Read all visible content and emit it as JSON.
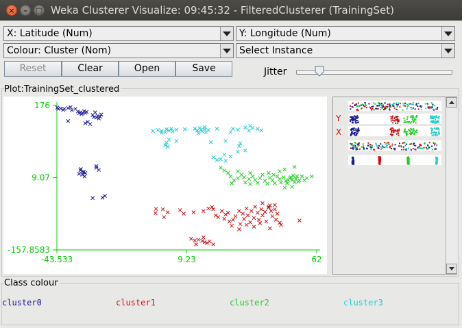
{
  "window": {
    "title": "Weka Clusterer Visualize: 09:45:32 - FilteredClusterer (TrainingSet)",
    "close_glyph": "×",
    "minimize_glyph": "–",
    "maximize_glyph": "□"
  },
  "controls": {
    "x_axis": "X: Latitude (Num)",
    "y_axis": "Y: Longitude (Num)",
    "colour": "Colour: Cluster (Nom)",
    "instance": "Select Instance",
    "buttons": {
      "reset": "Reset",
      "clear": "Clear",
      "open": "Open",
      "save": "Save"
    },
    "jitter_label": "Jitter",
    "jitter_level": 0.15
  },
  "plot": {
    "title": "Plot:TrainingSet_clustered",
    "axis_color": "#00cc00",
    "background": "#ffffff"
  },
  "attribute_panel": {
    "letters": [
      "Y",
      "X"
    ]
  },
  "class_colour": {
    "title": "Class colour",
    "items": [
      {
        "label": "cluster0",
        "color": "#1a1a9a"
      },
      {
        "label": "cluster1",
        "color": "#cc1111"
      },
      {
        "label": "cluster2",
        "color": "#22cc22"
      },
      {
        "label": "cluster3",
        "color": "#22cccc"
      }
    ]
  },
  "chart_data": {
    "type": "scatter",
    "title": "Plot:TrainingSet_clustered",
    "xlabel": "",
    "ylabel": "",
    "xlim": [
      -43.533,
      62
    ],
    "ylim": [
      -157.8583,
      176
    ],
    "x_ticks": [
      "-43.533",
      "9.23",
      "62"
    ],
    "y_ticks": [
      "176",
      "9.07",
      "-157.8583"
    ],
    "x_tick_values": [
      -43.533,
      9.23,
      62
    ],
    "y_tick_values": [
      176,
      9.07,
      -157.8583
    ],
    "marker": "x",
    "series": [
      {
        "name": "cluster0",
        "color": "#1a1a9a",
        "points": [
          [
            -43.4,
            171
          ],
          [
            -42,
            169
          ],
          [
            -40.5,
            168
          ],
          [
            -39,
            170
          ],
          [
            -41,
            166
          ],
          [
            -43,
            168
          ],
          [
            -38,
            172
          ],
          [
            -37.5,
            165
          ],
          [
            -36,
            168
          ],
          [
            -35,
            162
          ],
          [
            -34,
            160
          ],
          [
            -32.5,
            163
          ],
          [
            -33,
            158
          ],
          [
            -31.5,
            161
          ],
          [
            -34.5,
            158
          ],
          [
            -33.5,
            156
          ],
          [
            -32,
            159
          ],
          [
            -28,
            160
          ],
          [
            -27,
            152
          ],
          [
            -26,
            150
          ],
          [
            -25.5,
            155
          ],
          [
            -27.5,
            148
          ],
          [
            -26.5,
            146
          ],
          [
            -28.5,
            149
          ],
          [
            -29,
            154
          ],
          [
            -32,
            135
          ],
          [
            -30,
            133
          ],
          [
            -31,
            138
          ],
          [
            -39,
            140
          ],
          [
            -34,
            26
          ],
          [
            -33,
            23
          ],
          [
            -32,
            20
          ],
          [
            -34.5,
            18
          ],
          [
            -33.2,
            16
          ],
          [
            -32.6,
            22
          ],
          [
            -33.8,
            29
          ],
          [
            -32.3,
            12
          ],
          [
            -27.5,
            32
          ],
          [
            -26.5,
            27
          ],
          [
            -27.5,
            36
          ],
          [
            -29,
            -38
          ],
          [
            -25,
            -37
          ],
          [
            -24,
            -33
          ]
        ]
      },
      {
        "name": "cluster1",
        "color": "#cc1111",
        "points": [
          [
            -3.3,
            -63
          ],
          [
            -3.5,
            -73
          ],
          [
            -0.5,
            -64
          ],
          [
            0,
            -82
          ],
          [
            1.5,
            -71
          ],
          [
            6.5,
            -66
          ],
          [
            8,
            -74
          ],
          [
            12,
            -71
          ],
          [
            16,
            -68
          ],
          [
            18,
            -62
          ],
          [
            19.5,
            -59
          ],
          [
            20,
            -64
          ],
          [
            21,
            -78
          ],
          [
            22,
            -82
          ],
          [
            23.5,
            -68
          ],
          [
            24.5,
            -86
          ],
          [
            25,
            -76
          ],
          [
            26,
            -72
          ],
          [
            26.5,
            -92
          ],
          [
            27.5,
            -102
          ],
          [
            28,
            -88
          ],
          [
            29,
            -80
          ],
          [
            30.5,
            -68
          ],
          [
            31,
            -98
          ],
          [
            32,
            -74
          ],
          [
            32.5,
            -86
          ],
          [
            33.5,
            -62
          ],
          [
            34,
            -78
          ],
          [
            35,
            -94
          ],
          [
            35.5,
            -68
          ],
          [
            36.5,
            -84
          ],
          [
            37,
            -58
          ],
          [
            38,
            -72
          ],
          [
            38.5,
            -88
          ],
          [
            39.5,
            -64
          ],
          [
            40,
            -78
          ],
          [
            41,
            -70
          ],
          [
            41.5,
            -92
          ],
          [
            42.5,
            -60
          ],
          [
            43.5,
            -68
          ],
          [
            44,
            -80
          ],
          [
            45,
            -64
          ],
          [
            46,
            -74
          ],
          [
            33.5,
            -100
          ],
          [
            36.5,
            -104
          ],
          [
            30.5,
            -110
          ],
          [
            39,
            -96
          ],
          [
            45.5,
            -88
          ],
          [
            47,
            -95
          ],
          [
            47.5,
            -100
          ],
          [
            42.5,
            -58
          ],
          [
            43,
            -55
          ],
          [
            40,
            -50
          ],
          [
            45,
            -54
          ],
          [
            55,
            -90
          ],
          [
            43,
            -108
          ],
          [
            11,
            -132
          ],
          [
            12.5,
            -136
          ],
          [
            14,
            -134
          ],
          [
            15.5,
            -137
          ],
          [
            16.5,
            -140
          ],
          [
            17.5,
            -142
          ],
          [
            13,
            -145
          ],
          [
            16,
            -129
          ],
          [
            18.5,
            -138
          ],
          [
            20,
            -145
          ]
        ]
      },
      {
        "name": "cluster2",
        "color": "#22cc22",
        "points": [
          [
            23,
            32
          ],
          [
            24.5,
            26
          ],
          [
            26,
            20
          ],
          [
            27,
            12
          ],
          [
            28.5,
            3
          ],
          [
            27.5,
            -4
          ],
          [
            30,
            8
          ],
          [
            31.5,
            16
          ],
          [
            32.5,
            10
          ],
          [
            33,
            -2
          ],
          [
            34.5,
            6
          ],
          [
            35,
            -6
          ],
          [
            36,
            12
          ],
          [
            37,
            4
          ],
          [
            38,
            -3
          ],
          [
            39,
            8
          ],
          [
            40,
            16
          ],
          [
            41,
            2
          ],
          [
            42,
            -5
          ],
          [
            43,
            9
          ],
          [
            44,
            3
          ],
          [
            45,
            -4
          ],
          [
            46,
            12
          ],
          [
            47,
            6
          ],
          [
            47.5,
            -2
          ],
          [
            48.5,
            10
          ],
          [
            49.5,
            2
          ],
          [
            50,
            -4
          ],
          [
            51,
            8
          ],
          [
            52,
            4
          ],
          [
            52.5,
            14
          ],
          [
            53,
            -1
          ],
          [
            53.5,
            6
          ],
          [
            54,
            12
          ],
          [
            54.5,
            0
          ],
          [
            55,
            3
          ],
          [
            51.5,
            10
          ],
          [
            50.5,
            4
          ],
          [
            44.5,
            16
          ],
          [
            42.5,
            20
          ],
          [
            30,
            24
          ],
          [
            35,
            20
          ],
          [
            47,
            24
          ],
          [
            49,
            28
          ],
          [
            56,
            12
          ],
          [
            57,
            3
          ],
          [
            58,
            8
          ],
          [
            60,
            12
          ],
          [
            52,
            -12
          ],
          [
            49,
            -14
          ],
          [
            53,
            34
          ]
        ]
      },
      {
        "name": "cluster3",
        "color": "#22cccc",
        "points": [
          [
            -4.5,
            117
          ],
          [
            -2.5,
            119
          ],
          [
            -1,
            117
          ],
          [
            0.5,
            114
          ],
          [
            1,
            121
          ],
          [
            2,
            118
          ],
          [
            3.5,
            116
          ],
          [
            5,
            120
          ],
          [
            3,
            122
          ],
          [
            -1,
            113
          ],
          [
            8.5,
            121
          ],
          [
            2,
            97
          ],
          [
            1,
            90
          ],
          [
            0.5,
            84
          ],
          [
            1.5,
            81
          ],
          [
            5,
            94
          ],
          [
            12.5,
            122
          ],
          [
            13.5,
            118
          ],
          [
            14.5,
            124
          ],
          [
            15,
            120
          ],
          [
            15.5,
            116
          ],
          [
            16.5,
            121
          ],
          [
            17,
            114
          ],
          [
            18,
            119
          ],
          [
            14,
            112
          ],
          [
            16.5,
            126
          ],
          [
            21.5,
            122
          ],
          [
            28,
            122
          ],
          [
            30,
            120
          ],
          [
            27,
            114
          ],
          [
            33,
            125
          ],
          [
            34.5,
            118
          ],
          [
            35,
            129
          ],
          [
            36,
            124
          ],
          [
            38,
            122
          ],
          [
            39.5,
            118
          ],
          [
            19,
            91
          ],
          [
            25,
            94
          ],
          [
            31,
            88
          ],
          [
            30.5,
            82
          ],
          [
            20,
            56
          ],
          [
            23,
            52
          ],
          [
            21.5,
            50
          ],
          [
            25,
            48
          ],
          [
            27,
            58
          ],
          [
            24.5,
            62
          ],
          [
            30,
            69
          ],
          [
            33,
            72
          ]
        ]
      }
    ],
    "grid": false,
    "legend": "bottom"
  }
}
